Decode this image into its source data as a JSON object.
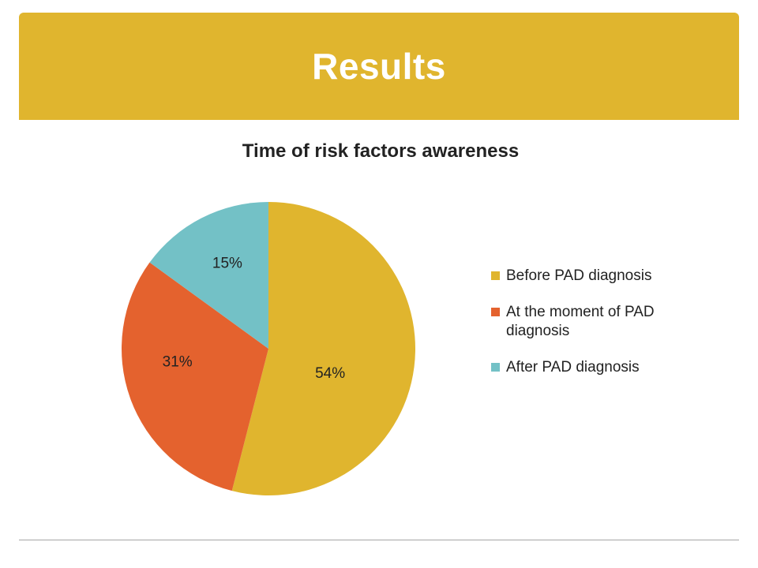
{
  "slide": {
    "title": "Results"
  },
  "chart_data": {
    "type": "pie",
    "title": "Time of risk factors awareness",
    "categories": [
      "Before PAD diagnosis",
      "At the moment of PAD diagnosis",
      "After PAD diagnosis"
    ],
    "values": [
      54,
      31,
      15
    ],
    "data_labels": [
      "54%",
      "31%",
      "15%"
    ],
    "colors": [
      "#e0b52e",
      "#e4622e",
      "#73c1c6"
    ],
    "legend_position": "right"
  }
}
